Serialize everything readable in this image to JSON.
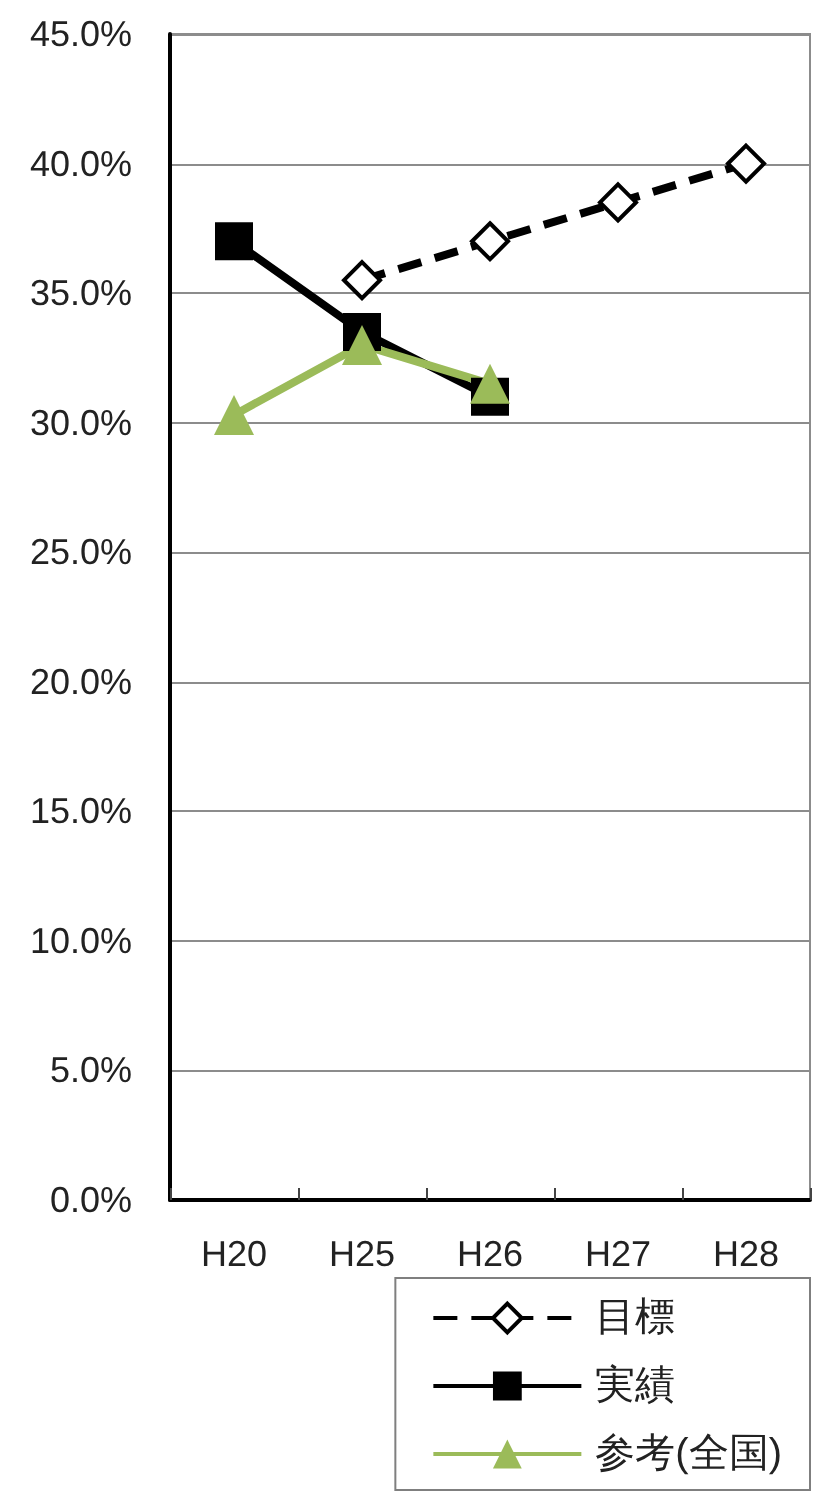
{
  "chart_data": {
    "type": "line",
    "categories": [
      "H20",
      "H25",
      "H26",
      "H27",
      "H28"
    ],
    "series": [
      {
        "name": "目標",
        "color": "#000000",
        "values": [
          null,
          35.5,
          37.0,
          38.5,
          40.0
        ],
        "marker": "diamond",
        "line_style": "dashed"
      },
      {
        "name": "実績",
        "color": "#000000",
        "values": [
          37.0,
          33.5,
          31.0,
          null,
          null
        ],
        "marker": "square",
        "line_style": "solid"
      },
      {
        "name": "参考(全国)",
        "color": "#9bbb59",
        "values": [
          30.3,
          33.0,
          31.5,
          null,
          null
        ],
        "marker": "triangle",
        "line_style": "solid"
      }
    ],
    "ylim": [
      0,
      45
    ],
    "yticks": [
      {
        "value": 0,
        "label": "0.0%"
      },
      {
        "value": 5,
        "label": "5.0%"
      },
      {
        "value": 10,
        "label": "10.0%"
      },
      {
        "value": 15,
        "label": "15.0%"
      },
      {
        "value": 20,
        "label": "20.0%"
      },
      {
        "value": 25,
        "label": "25.0%"
      },
      {
        "value": 30,
        "label": "30.0%"
      },
      {
        "value": 35,
        "label": "35.0%"
      },
      {
        "value": 40,
        "label": "40.0%"
      },
      {
        "value": 45,
        "label": "45.0%"
      }
    ],
    "grid": "y",
    "legend": "bottom right"
  }
}
